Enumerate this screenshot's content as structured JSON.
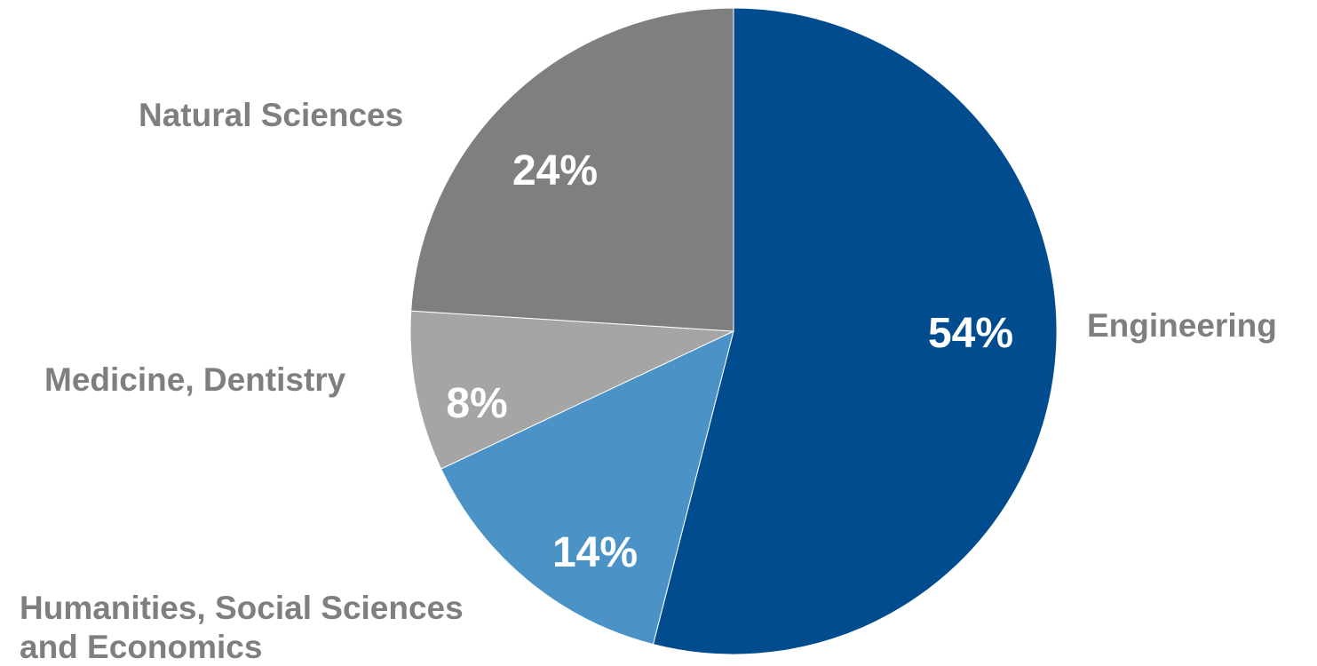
{
  "chart_data": {
    "type": "pie",
    "title": "",
    "start_angle_deg": 0,
    "direction": "clockwise",
    "legend": "none",
    "slices": [
      {
        "label": "Engineering",
        "value": 54,
        "display": "54%",
        "color": "#004c8f"
      },
      {
        "label": "Humanities, Social Sciences and Economics",
        "value": 14,
        "display": "14%",
        "color": "#4b93c7"
      },
      {
        "label": "Medicine, Dentistry",
        "value": 8,
        "display": "8%",
        "color": "#a5a5a5"
      },
      {
        "label": "Natural Sciences",
        "value": 24,
        "display": "24%",
        "color": "#7f7f7f"
      }
    ]
  },
  "labels": {
    "engineering": "Engineering",
    "humanities_line1": "Humanities, Social Sciences",
    "humanities_line2": "and Economics",
    "medicine": "Medicine, Dentistry",
    "natural_sciences": "Natural Sciences"
  },
  "percentages": {
    "engineering": "54%",
    "humanities": "14%",
    "medicine": "8%",
    "natural_sciences": "24%"
  }
}
